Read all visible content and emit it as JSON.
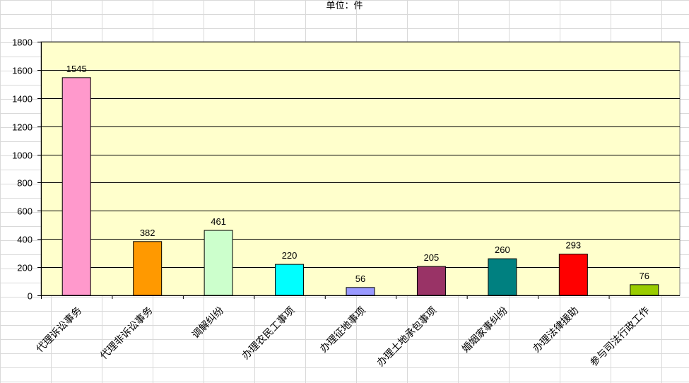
{
  "chart_data": {
    "type": "bar",
    "title": "单位：件",
    "xlabel": "",
    "ylabel": "",
    "categories": [
      "代理诉讼事务",
      "代理非诉讼事务",
      "调解纠纷",
      "办理农民工事项",
      "办理征地事项",
      "办理土地承包事项",
      "婚姻家事纠纷",
      "办理法律援助",
      "参与司法行政工作"
    ],
    "values": [
      1545,
      382,
      461,
      220,
      56,
      205,
      260,
      293,
      76
    ],
    "ylim": [
      0,
      1800
    ],
    "yticks": [
      0,
      200,
      400,
      600,
      800,
      1000,
      1200,
      1400,
      1600,
      1800
    ],
    "grid": true,
    "legend": "none",
    "colors": {
      "plot_background": "#ffffcc",
      "gridline": "#000000",
      "bars": [
        "#ff99cc",
        "#ff9900",
        "#ccffcc",
        "#00ffff",
        "#9999ff",
        "#993366",
        "#008080",
        "#ff0000",
        "#99cc00"
      ]
    }
  }
}
